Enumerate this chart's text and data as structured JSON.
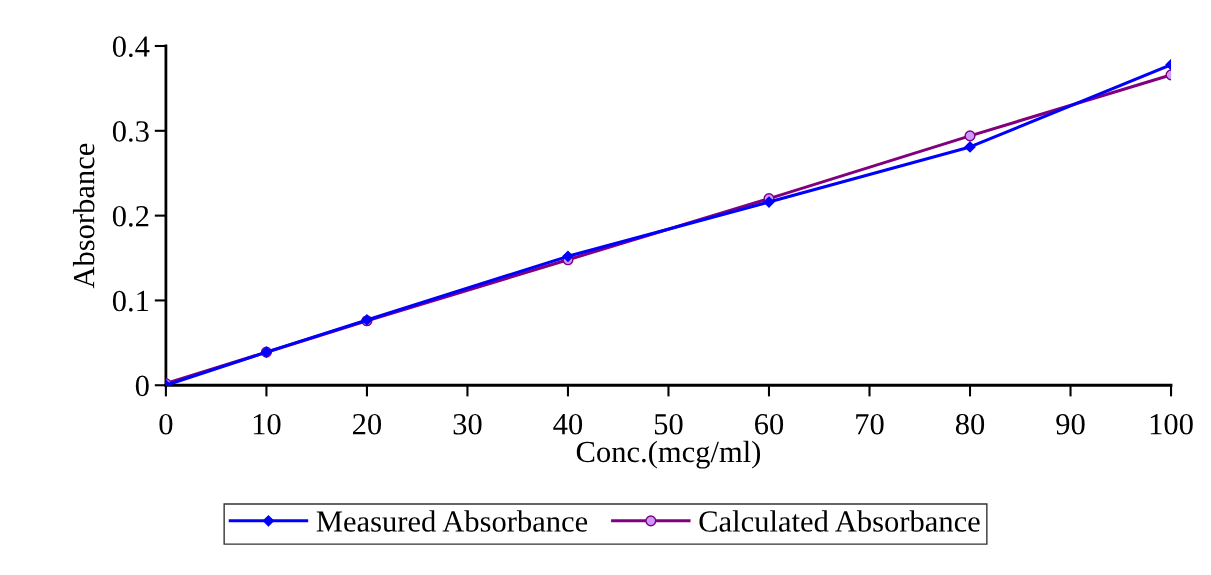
{
  "chart_data": {
    "type": "line",
    "xlabel": "Conc.(mcg/ml)",
    "ylabel": "Absorbance",
    "x": [
      0,
      10,
      20,
      40,
      60,
      80,
      100
    ],
    "series": [
      {
        "name": "Measured Absorbance",
        "color": "#0000ff",
        "marker": "diamond",
        "values": [
          0,
          0.039,
          0.077,
          0.152,
          0.216,
          0.281,
          0.378
        ]
      },
      {
        "name": "Calculated Absorbance",
        "color": "#800080",
        "marker": "circle",
        "values": [
          0.002,
          0.039,
          0.076,
          0.148,
          0.22,
          0.294,
          0.366
        ]
      }
    ],
    "xlim": [
      0,
      100
    ],
    "xticks": [
      0,
      10,
      20,
      30,
      40,
      50,
      60,
      70,
      80,
      90,
      100
    ],
    "ylim": [
      0,
      0.4
    ],
    "yticks": [
      0,
      0.1,
      0.2,
      0.3,
      0.4
    ],
    "grid": false,
    "legend": "bottom",
    "line_style": "solid"
  }
}
